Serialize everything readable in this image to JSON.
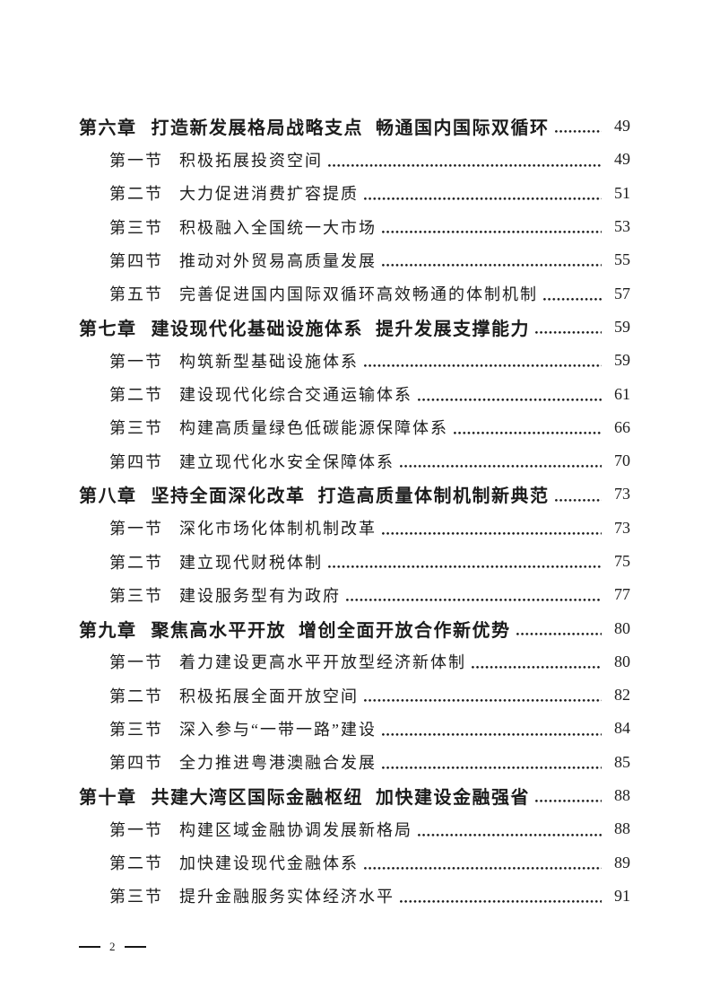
{
  "colors": {
    "text": "#1c1c1c",
    "background": "#ffffff"
  },
  "footer": {
    "page_number": "2"
  },
  "toc": {
    "chapters": [
      {
        "label": "第六章",
        "title": "打造新发展格局战略支点 畅通国内国际双循环",
        "page": "49",
        "sections": [
          {
            "label": "第一节",
            "title": "积极拓展投资空间",
            "page": "49"
          },
          {
            "label": "第二节",
            "title": "大力促进消费扩容提质",
            "page": "51"
          },
          {
            "label": "第三节",
            "title": "积极融入全国统一大市场",
            "page": "53"
          },
          {
            "label": "第四节",
            "title": "推动对外贸易高质量发展",
            "page": "55"
          },
          {
            "label": "第五节",
            "title": "完善促进国内国际双循环高效畅通的体制机制",
            "page": "57"
          }
        ]
      },
      {
        "label": "第七章",
        "title": "建设现代化基础设施体系 提升发展支撑能力",
        "page": "59",
        "sections": [
          {
            "label": "第一节",
            "title": "构筑新型基础设施体系",
            "page": "59"
          },
          {
            "label": "第二节",
            "title": "建设现代化综合交通运输体系",
            "page": "61"
          },
          {
            "label": "第三节",
            "title": "构建高质量绿色低碳能源保障体系",
            "page": "66"
          },
          {
            "label": "第四节",
            "title": "建立现代化水安全保障体系",
            "page": "70"
          }
        ]
      },
      {
        "label": "第八章",
        "title": "坚持全面深化改革 打造高质量体制机制新典范",
        "page": "73",
        "sections": [
          {
            "label": "第一节",
            "title": "深化市场化体制机制改革",
            "page": "73"
          },
          {
            "label": "第二节",
            "title": "建立现代财税体制",
            "page": "75"
          },
          {
            "label": "第三节",
            "title": "建设服务型有为政府",
            "page": "77"
          }
        ]
      },
      {
        "label": "第九章",
        "title": "聚焦高水平开放 增创全面开放合作新优势",
        "page": "80",
        "sections": [
          {
            "label": "第一节",
            "title": "着力建设更高水平开放型经济新体制",
            "page": "80"
          },
          {
            "label": "第二节",
            "title": "积极拓展全面开放空间",
            "page": "82"
          },
          {
            "label": "第三节",
            "title": "深入参与“一带一路”建设",
            "page": "84"
          },
          {
            "label": "第四节",
            "title": "全力推进粤港澳融合发展",
            "page": "85"
          }
        ]
      },
      {
        "label": "第十章",
        "title": "共建大湾区国际金融枢纽 加快建设金融强省",
        "page": "88",
        "sections": [
          {
            "label": "第一节",
            "title": "构建区域金融协调发展新格局",
            "page": "88"
          },
          {
            "label": "第二节",
            "title": "加快建设现代金融体系",
            "page": "89"
          },
          {
            "label": "第三节",
            "title": "提升金融服务实体经济水平",
            "page": "91"
          }
        ]
      }
    ]
  }
}
